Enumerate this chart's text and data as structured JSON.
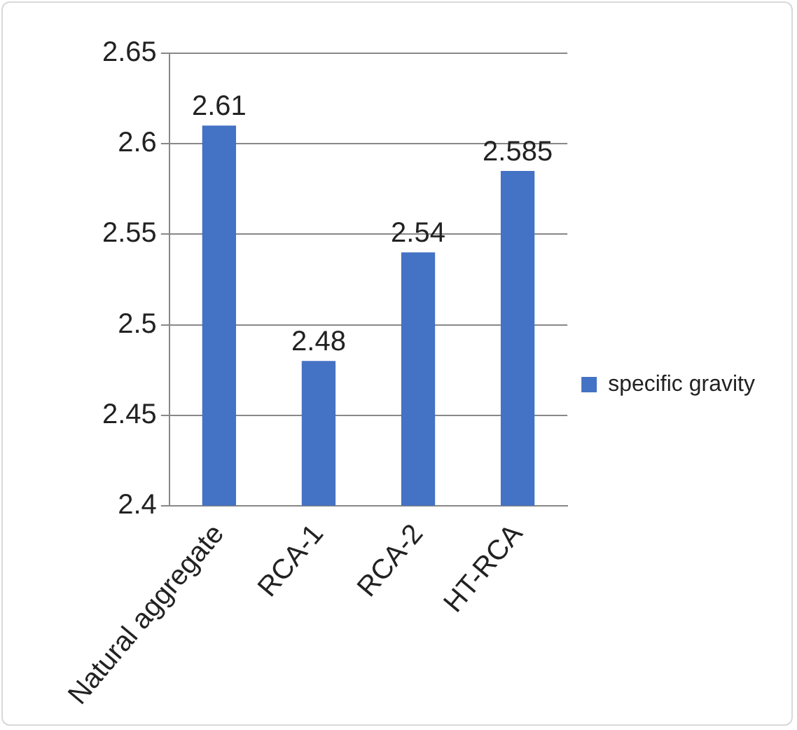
{
  "chart_data": {
    "type": "bar",
    "categories": [
      "Natural aggregate",
      "RCA-1",
      "RCA-2",
      "HT-RCA"
    ],
    "series": [
      {
        "name": "specific gravity",
        "color": "#4472c4",
        "values": [
          2.61,
          2.48,
          2.54,
          2.585
        ]
      }
    ],
    "ylim": [
      2.4,
      2.65
    ],
    "yticks": [
      2.4,
      2.45,
      2.5,
      2.55,
      2.6,
      2.65
    ],
    "grid": "y",
    "legend": "right",
    "data_labels": true
  }
}
